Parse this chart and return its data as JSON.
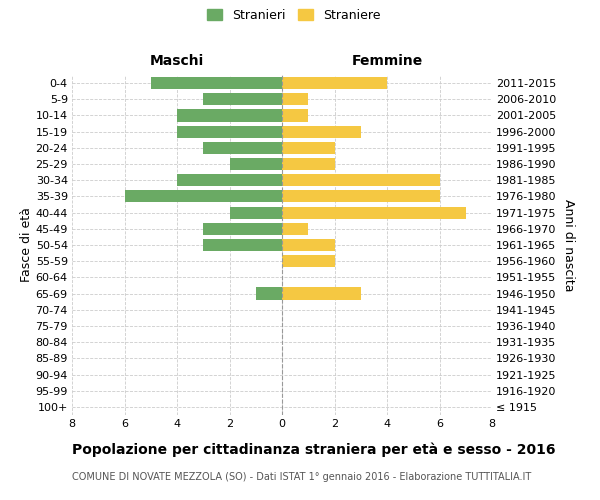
{
  "age_groups": [
    "100+",
    "95-99",
    "90-94",
    "85-89",
    "80-84",
    "75-79",
    "70-74",
    "65-69",
    "60-64",
    "55-59",
    "50-54",
    "45-49",
    "40-44",
    "35-39",
    "30-34",
    "25-29",
    "20-24",
    "15-19",
    "10-14",
    "5-9",
    "0-4"
  ],
  "birth_years": [
    "≤ 1915",
    "1916-1920",
    "1921-1925",
    "1926-1930",
    "1931-1935",
    "1936-1940",
    "1941-1945",
    "1946-1950",
    "1951-1955",
    "1956-1960",
    "1961-1965",
    "1966-1970",
    "1971-1975",
    "1976-1980",
    "1981-1985",
    "1986-1990",
    "1991-1995",
    "1996-2000",
    "2001-2005",
    "2006-2010",
    "2011-2015"
  ],
  "maschi": [
    0,
    0,
    0,
    0,
    0,
    0,
    0,
    1,
    0,
    0,
    3,
    3,
    2,
    6,
    4,
    2,
    3,
    4,
    4,
    3,
    5
  ],
  "femmine": [
    0,
    0,
    0,
    0,
    0,
    0,
    0,
    3,
    0,
    2,
    2,
    1,
    7,
    6,
    6,
    2,
    2,
    3,
    1,
    1,
    4
  ],
  "color_maschi": "#6aaa64",
  "color_femmine": "#f5c842",
  "background_color": "#ffffff",
  "grid_color": "#cccccc",
  "title": "Popolazione per cittadinanza straniera per età e sesso - 2016",
  "subtitle": "COMUNE DI NOVATE MEZZOLA (SO) - Dati ISTAT 1° gennaio 2016 - Elaborazione TUTTITALIA.IT",
  "ylabel_left": "Fasce di età",
  "ylabel_right": "Anni di nascita",
  "xlabel_range": 8,
  "legend_maschi": "Stranieri",
  "legend_femmine": "Straniere",
  "header_maschi": "Maschi",
  "header_femmine": "Femmine",
  "bar_height": 0.75,
  "tick_fontsize": 8,
  "label_fontsize": 9,
  "header_fontsize": 10,
  "title_fontsize": 10,
  "subtitle_fontsize": 7
}
